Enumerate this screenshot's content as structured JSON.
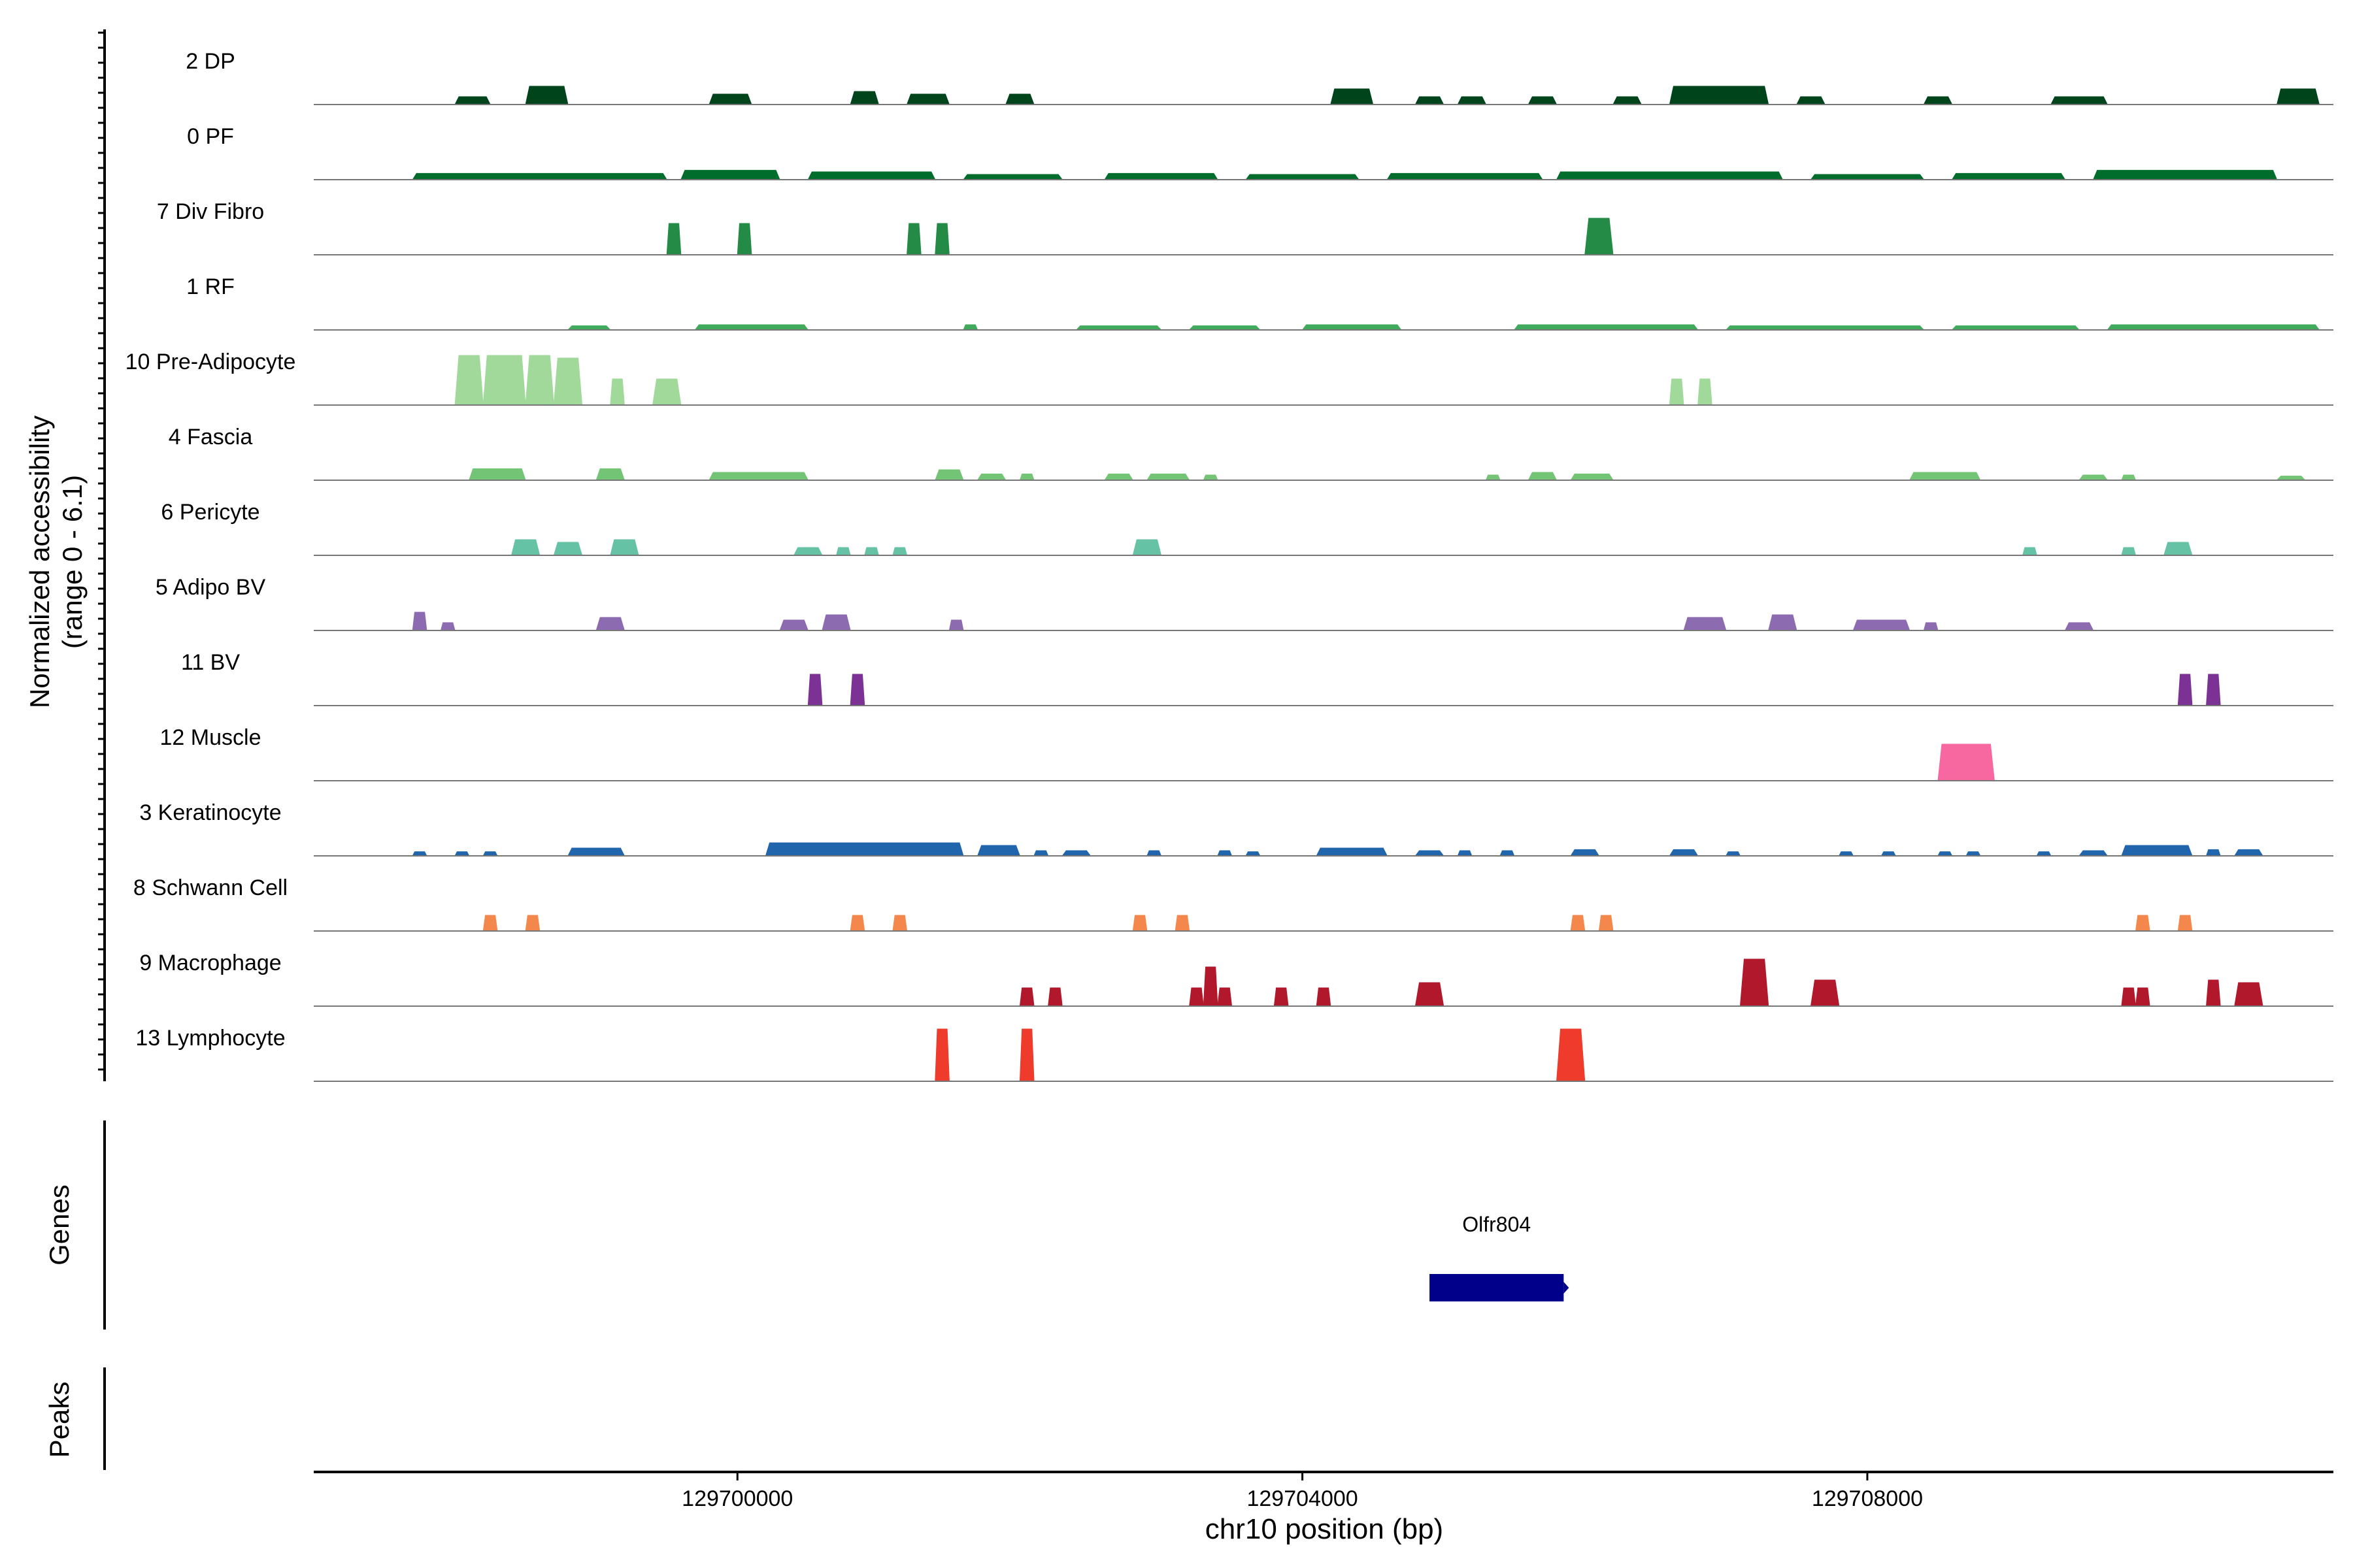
{
  "chart_data": {
    "type": "area",
    "y_axis_label_line1": "Normalized accessibility",
    "y_axis_label_line2": "(range 0 - 6.1)",
    "genes_label": "Genes",
    "peaks_label": "Peaks",
    "xlabel": "chr10 position (bp)",
    "xlim": [
      129697000,
      129711300
    ],
    "x_ticks": [
      129700000,
      129704000,
      129708000
    ],
    "x_tick_labels": [
      "129700000",
      "129704000",
      "129708000"
    ],
    "tracks": [
      {
        "name": "2 DP",
        "color": "#00441b",
        "regions": [
          [
            129698000,
            129698250,
            0.15
          ],
          [
            129698500,
            129698800,
            0.35
          ],
          [
            129699800,
            129700100,
            0.2
          ],
          [
            129700800,
            129701000,
            0.25
          ],
          [
            129701200,
            129701500,
            0.2
          ],
          [
            129701900,
            129702100,
            0.2
          ],
          [
            129704200,
            129704500,
            0.3
          ],
          [
            129704800,
            129705000,
            0.15
          ],
          [
            129705100,
            129705300,
            0.15
          ],
          [
            129705600,
            129705800,
            0.15
          ],
          [
            129706200,
            129706400,
            0.15
          ],
          [
            129706600,
            129707300,
            0.35
          ],
          [
            129707500,
            129707700,
            0.15
          ],
          [
            129708400,
            129708600,
            0.15
          ],
          [
            129709300,
            129709700,
            0.15
          ],
          [
            129710900,
            129711200,
            0.3
          ]
        ]
      },
      {
        "name": "0 PF",
        "color": "#006d2c",
        "regions": [
          [
            129697700,
            129699500,
            0.12
          ],
          [
            129699600,
            129700300,
            0.18
          ],
          [
            129700500,
            129701400,
            0.15
          ],
          [
            129701600,
            129702300,
            0.1
          ],
          [
            129702600,
            129703400,
            0.12
          ],
          [
            129703600,
            129704400,
            0.1
          ],
          [
            129704600,
            129705700,
            0.12
          ],
          [
            129705800,
            129707400,
            0.15
          ],
          [
            129707600,
            129708400,
            0.1
          ],
          [
            129708600,
            129709400,
            0.12
          ],
          [
            129709600,
            129710900,
            0.18
          ]
        ]
      },
      {
        "name": "7 Div Fibro",
        "color": "#238b45",
        "regions": [
          [
            129699500,
            129699600,
            0.6
          ],
          [
            129700000,
            129700100,
            0.6
          ],
          [
            129701200,
            129701300,
            0.6
          ],
          [
            129701400,
            129701500,
            0.6
          ],
          [
            129706000,
            129706200,
            0.7
          ]
        ]
      },
      {
        "name": "1 RF",
        "color": "#41ab5d",
        "regions": [
          [
            129698800,
            129699100,
            0.08
          ],
          [
            129699700,
            129700500,
            0.1
          ],
          [
            129701600,
            129701700,
            0.1
          ],
          [
            129702400,
            129703000,
            0.08
          ],
          [
            129703200,
            129703700,
            0.08
          ],
          [
            129704000,
            129704700,
            0.1
          ],
          [
            129705500,
            129706800,
            0.1
          ],
          [
            129707000,
            129708400,
            0.08
          ],
          [
            129708600,
            129709500,
            0.08
          ],
          [
            129709700,
            129711200,
            0.1
          ]
        ]
      },
      {
        "name": "10 Pre-Adipocyte",
        "color": "#a1d99b",
        "regions": [
          [
            129698000,
            129698200,
            0.95
          ],
          [
            129698200,
            129698500,
            0.95
          ],
          [
            129698500,
            129698700,
            0.95
          ],
          [
            129698700,
            129698900,
            0.9
          ],
          [
            129699100,
            129699200,
            0.5
          ],
          [
            129699400,
            129699600,
            0.5
          ],
          [
            129706600,
            129706700,
            0.5
          ],
          [
            129706800,
            129706900,
            0.5
          ]
        ]
      },
      {
        "name": "4 Fascia",
        "color": "#74c476",
        "regions": [
          [
            129698100,
            129698500,
            0.22
          ],
          [
            129699000,
            129699200,
            0.22
          ],
          [
            129699800,
            129700500,
            0.15
          ],
          [
            129701400,
            129701600,
            0.2
          ],
          [
            129701700,
            129701900,
            0.12
          ],
          [
            129702000,
            129702100,
            0.12
          ],
          [
            129702600,
            129702800,
            0.12
          ],
          [
            129702900,
            129703200,
            0.12
          ],
          [
            129703300,
            129703400,
            0.1
          ],
          [
            129705300,
            129705400,
            0.1
          ],
          [
            129705600,
            129705800,
            0.15
          ],
          [
            129705900,
            129706200,
            0.12
          ],
          [
            129708300,
            129708800,
            0.15
          ],
          [
            129709500,
            129709700,
            0.1
          ],
          [
            129709800,
            129709900,
            0.1
          ],
          [
            129710900,
            129711100,
            0.08
          ]
        ]
      },
      {
        "name": "6 Pericyte",
        "color": "#66c2a4",
        "regions": [
          [
            129698400,
            129698600,
            0.3
          ],
          [
            129698700,
            129698900,
            0.25
          ],
          [
            129699100,
            129699300,
            0.3
          ],
          [
            129700400,
            129700600,
            0.15
          ],
          [
            129700700,
            129700800,
            0.15
          ],
          [
            129700900,
            129701000,
            0.15
          ],
          [
            129701100,
            129701200,
            0.15
          ],
          [
            129702800,
            129703000,
            0.3
          ],
          [
            129709100,
            129709200,
            0.15
          ],
          [
            129709800,
            129709900,
            0.15
          ],
          [
            129710100,
            129710300,
            0.25
          ]
        ]
      },
      {
        "name": "5 Adipo BV",
        "color": "#8c6bb1",
        "regions": [
          [
            129697700,
            129697800,
            0.35
          ],
          [
            129697900,
            129698000,
            0.15
          ],
          [
            129699000,
            129699200,
            0.25
          ],
          [
            129700300,
            129700500,
            0.2
          ],
          [
            129700600,
            129700800,
            0.3
          ],
          [
            129701500,
            129701600,
            0.2
          ],
          [
            129706700,
            129707000,
            0.25
          ],
          [
            129707300,
            129707500,
            0.3
          ],
          [
            129707900,
            129708300,
            0.2
          ],
          [
            129708400,
            129708500,
            0.15
          ],
          [
            129709400,
            129709600,
            0.15
          ]
        ]
      },
      {
        "name": "11 BV",
        "color": "#7b3294",
        "regions": [
          [
            129700500,
            129700600,
            0.6
          ],
          [
            129700800,
            129700900,
            0.6
          ],
          [
            129710200,
            129710300,
            0.6
          ],
          [
            129710400,
            129710500,
            0.6
          ]
        ]
      },
      {
        "name": "12 Muscle",
        "color": "#f768a1",
        "regions": [
          [
            129708500,
            129708900,
            0.7
          ]
        ]
      },
      {
        "name": "3 Keratinocyte",
        "color": "#2166ac",
        "regions": [
          [
            129697700,
            129697800,
            0.08
          ],
          [
            129698000,
            129698100,
            0.08
          ],
          [
            129698200,
            129698300,
            0.08
          ],
          [
            129698800,
            129699200,
            0.15
          ],
          [
            129700200,
            129701600,
            0.25
          ],
          [
            129701700,
            129702000,
            0.2
          ],
          [
            129702100,
            129702200,
            0.1
          ],
          [
            129702300,
            129702500,
            0.1
          ],
          [
            129702900,
            129703000,
            0.1
          ],
          [
            129703400,
            129703500,
            0.1
          ],
          [
            129703600,
            129703700,
            0.08
          ],
          [
            129704100,
            129704600,
            0.15
          ],
          [
            129704800,
            129705000,
            0.1
          ],
          [
            129705100,
            129705200,
            0.1
          ],
          [
            129705400,
            129705500,
            0.1
          ],
          [
            129705900,
            129706100,
            0.12
          ],
          [
            129706600,
            129706800,
            0.12
          ],
          [
            129707000,
            129707100,
            0.08
          ],
          [
            129707800,
            129707900,
            0.08
          ],
          [
            129708100,
            129708200,
            0.08
          ],
          [
            129708500,
            129708600,
            0.08
          ],
          [
            129708700,
            129708800,
            0.08
          ],
          [
            129709200,
            129709300,
            0.08
          ],
          [
            129709500,
            129709700,
            0.1
          ],
          [
            129709800,
            129710300,
            0.2
          ],
          [
            129710400,
            129710500,
            0.12
          ],
          [
            129710600,
            129710800,
            0.12
          ]
        ]
      },
      {
        "name": "8 Schwann Cell",
        "color": "#f4874b",
        "regions": [
          [
            129698200,
            129698300,
            0.3
          ],
          [
            129698500,
            129698600,
            0.3
          ],
          [
            129700800,
            129700900,
            0.3
          ],
          [
            129701100,
            129701200,
            0.3
          ],
          [
            129702800,
            129702900,
            0.3
          ],
          [
            129703100,
            129703200,
            0.3
          ],
          [
            129705900,
            129706000,
            0.3
          ],
          [
            129706100,
            129706200,
            0.3
          ],
          [
            129709900,
            129710000,
            0.3
          ],
          [
            129710200,
            129710300,
            0.3
          ]
        ]
      },
      {
        "name": "9 Macrophage",
        "color": "#b2182b",
        "regions": [
          [
            129702000,
            129702100,
            0.35
          ],
          [
            129702200,
            129702300,
            0.35
          ],
          [
            129703200,
            129703300,
            0.35
          ],
          [
            129703300,
            129703400,
            0.75
          ],
          [
            129703400,
            129703500,
            0.35
          ],
          [
            129703800,
            129703900,
            0.35
          ],
          [
            129704100,
            129704200,
            0.35
          ],
          [
            129704800,
            129705000,
            0.45
          ],
          [
            129707100,
            129707300,
            0.9
          ],
          [
            129707600,
            129707800,
            0.5
          ],
          [
            129709800,
            129709900,
            0.35
          ],
          [
            129709900,
            129710000,
            0.35
          ],
          [
            129710400,
            129710500,
            0.5
          ],
          [
            129710600,
            129710800,
            0.45
          ]
        ]
      },
      {
        "name": "13 Lymphocyte",
        "color": "#ef3b2c",
        "regions": [
          [
            129701400,
            129701500,
            1.0
          ],
          [
            129702000,
            129702100,
            1.0
          ],
          [
            129705800,
            129706000,
            1.0
          ]
        ]
      }
    ],
    "genes": [
      {
        "name": "Olfr804",
        "start": 129704900,
        "end": 129705850,
        "strand": "+",
        "color": "#00008b"
      }
    ]
  }
}
